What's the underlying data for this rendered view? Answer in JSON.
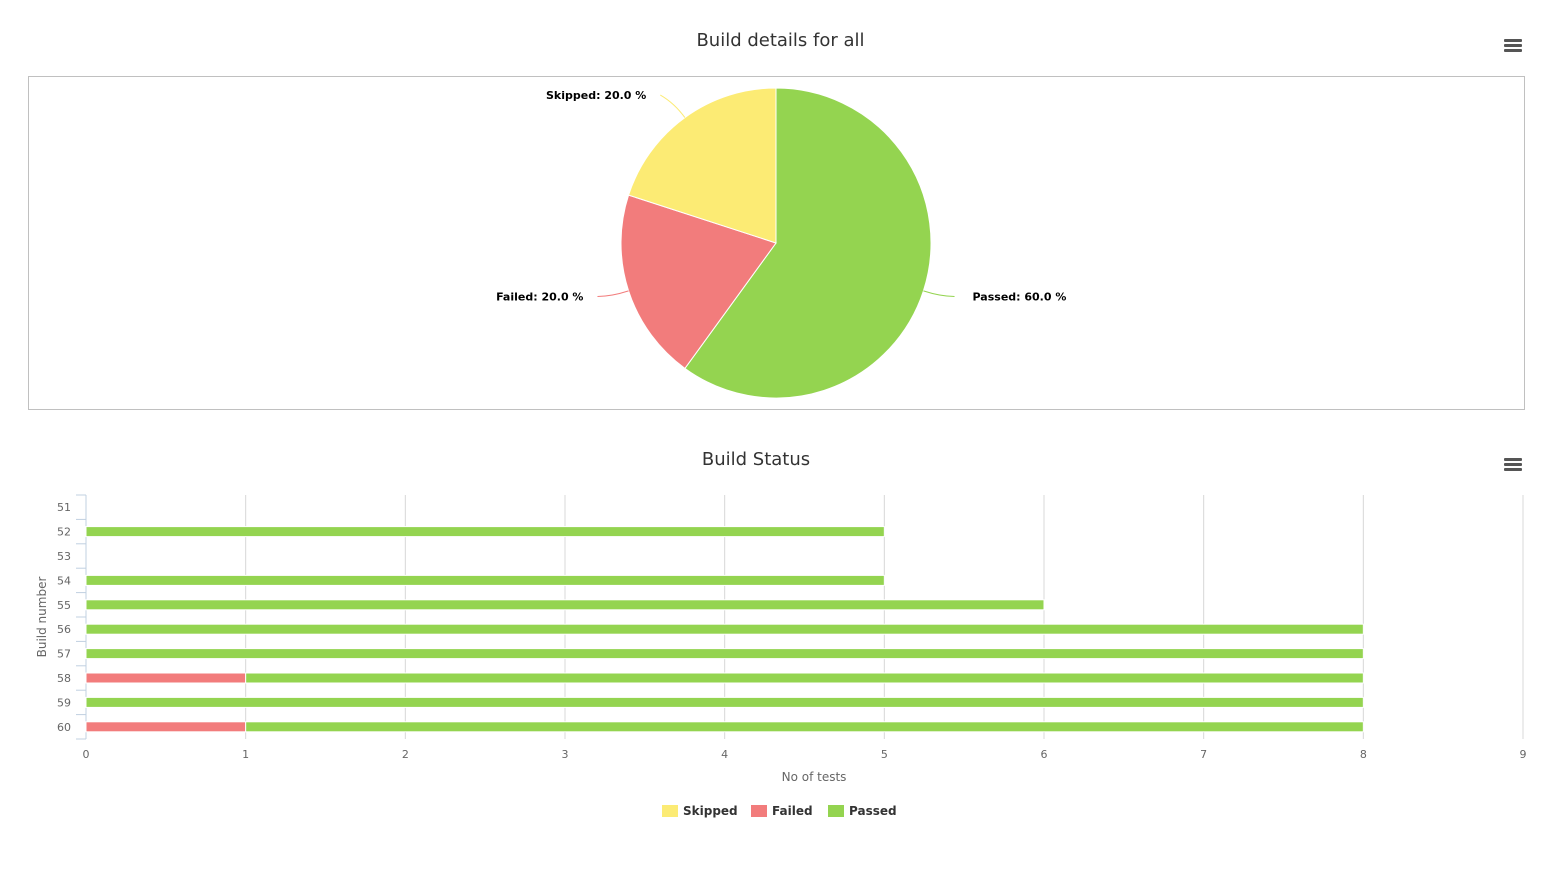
{
  "pie_chart": {
    "title": "Build details for all",
    "menu_icon": "hamburger-menu-icon"
  },
  "bar_chart": {
    "title": "Build Status",
    "menu_icon": "hamburger-menu-icon"
  },
  "colors": {
    "skipped": "#fceb74",
    "failed": "#f27c7c",
    "passed": "#94d450"
  },
  "legend": [
    {
      "label": "Skipped",
      "color": "#fceb74"
    },
    {
      "label": "Failed",
      "color": "#f27c7c"
    },
    {
      "label": "Passed",
      "color": "#94d450"
    }
  ],
  "chart_data": [
    {
      "type": "pie",
      "title": "Build details for all",
      "slices": [
        {
          "name": "Passed",
          "value": 60.0,
          "label": "Passed: 60.0 %",
          "color": "#94d450"
        },
        {
          "name": "Failed",
          "value": 20.0,
          "label": "Failed: 20.0 %",
          "color": "#f27c7c"
        },
        {
          "name": "Skipped",
          "value": 20.0,
          "label": "Skipped: 20.0 %",
          "color": "#fceb74"
        }
      ]
    },
    {
      "type": "bar",
      "orientation": "horizontal",
      "stacked": true,
      "title": "Build Status",
      "xlabel": "No of tests",
      "ylabel": "Build number",
      "xlim": [
        0,
        9
      ],
      "x_ticks": [
        "0",
        "1",
        "2",
        "3",
        "4",
        "5",
        "6",
        "7",
        "8",
        "9"
      ],
      "categories": [
        "51",
        "52",
        "53",
        "54",
        "55",
        "56",
        "57",
        "58",
        "59",
        "60"
      ],
      "series": [
        {
          "name": "Skipped",
          "color": "#fceb74",
          "values": [
            0,
            0,
            0,
            0,
            0,
            0,
            0,
            0,
            0,
            0
          ]
        },
        {
          "name": "Failed",
          "color": "#f27c7c",
          "values": [
            0,
            0,
            0,
            0,
            0,
            0,
            0,
            1,
            0,
            1
          ]
        },
        {
          "name": "Passed",
          "color": "#94d450",
          "values": [
            0,
            5,
            0,
            5,
            6,
            8,
            8,
            7,
            8,
            7
          ]
        }
      ],
      "grid": true,
      "legend_position": "bottom-center"
    }
  ]
}
